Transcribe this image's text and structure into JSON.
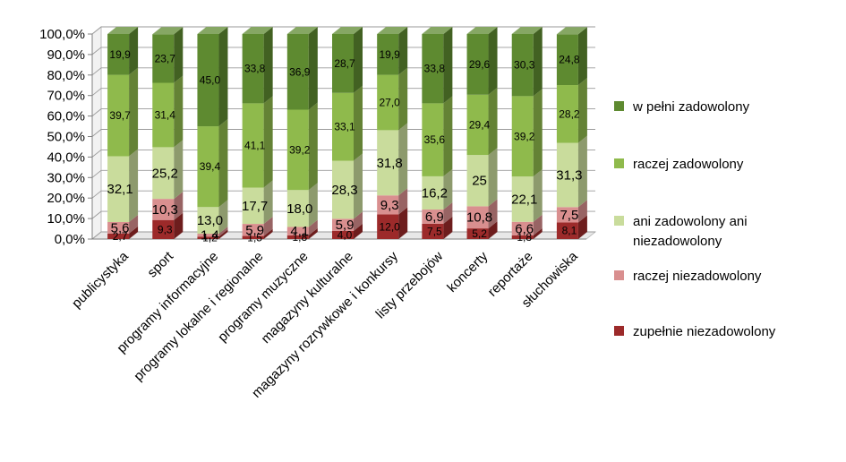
{
  "chart_data": {
    "type": "bar",
    "stacked": true,
    "percent": true,
    "style": "3d-stacked-column",
    "categories": [
      "publicystyka",
      "sport",
      "programy informacyjne",
      "programy lokalne i regionalne",
      "programy muzyczne",
      "magazyny kulturalne",
      "magazyny rozrywkowe i konkursy",
      "listy przebojów",
      "koncerty",
      "reportaże",
      "słuchowiska"
    ],
    "series": [
      {
        "name": "zupełnie niezadowolony",
        "color": "#9c2a2a",
        "values": [
          2.7,
          9.3,
          1.2,
          1.5,
          1.8,
          4.0,
          12.0,
          7.5,
          5.2,
          1.8,
          8.1
        ],
        "labels": [
          "2,7",
          "9,3",
          "1,2",
          "1,5",
          "1,8",
          "4,0",
          "12,0",
          "7,5",
          "5,2",
          "1,8",
          "8,1"
        ]
      },
      {
        "name": "raczej niezadowolony",
        "color": "#d98f8f",
        "values": [
          5.6,
          10.3,
          1.4,
          5.9,
          4.1,
          5.9,
          9.3,
          6.9,
          10.8,
          6.6,
          7.5
        ],
        "labels": [
          "5,6",
          "10,3",
          "1,4",
          "5,9",
          "4,1",
          "5,9",
          "9,3",
          "6,9",
          "10,8",
          "6,6",
          "7,5"
        ]
      },
      {
        "name": "ani zadowolony ani niezadowolony",
        "color": "#c9dc9c",
        "values": [
          32.1,
          25.2,
          13.0,
          17.7,
          18.0,
          28.3,
          31.8,
          16.2,
          25,
          22.1,
          31.3
        ],
        "labels": [
          "32,1",
          "25,2",
          "13,0",
          "17,7",
          "18,0",
          "28,3",
          "31,8",
          "16,2",
          "25",
          "22,1",
          "31,3"
        ]
      },
      {
        "name": "raczej zadowolony",
        "color": "#8fba4c",
        "values": [
          39.7,
          31.4,
          39.4,
          41.1,
          39.2,
          33.1,
          27.0,
          35.6,
          29.4,
          39.2,
          28.2
        ],
        "labels": [
          "39,7",
          "31,4",
          "39,4",
          "41,1",
          "39,2",
          "33,1",
          "27,0",
          "35,6",
          "29,4",
          "39,2",
          "28,2"
        ]
      },
      {
        "name": "w pełni zadowolony",
        "color": "#5e8a30",
        "values": [
          19.9,
          23.7,
          45.0,
          33.8,
          36.9,
          28.7,
          19.9,
          33.8,
          29.6,
          30.3,
          24.8
        ],
        "labels": [
          "19,9",
          "23,7",
          "45,0",
          "33,8",
          "36,9",
          "28,7",
          "19,9",
          "33,8",
          "29,6",
          "30,3",
          "24,8"
        ]
      }
    ],
    "yticks": [
      "0,0%",
      "10,0%",
      "20,0%",
      "30,0%",
      "40,0%",
      "50,0%",
      "60,0%",
      "70,0%",
      "80,0%",
      "90,0%",
      "100,0%"
    ],
    "ylim": [
      0,
      100
    ],
    "grid": true,
    "legend": {
      "position": "right",
      "order": [
        "w pełni zadowolony",
        "raczej zadowolony",
        "ani zadowolony ani niezadowolony",
        "raczej niezadowolony",
        "zupełnie niezadowolony"
      ],
      "lines": [
        [
          "w pełni zadowolony"
        ],
        [
          "raczej zadowolony"
        ],
        [
          "ani zadowolony ani",
          "niezadowolony"
        ],
        [
          "raczej niezadowolony"
        ],
        [
          "zupełnie niezadowolony"
        ]
      ]
    },
    "title": "",
    "xlabel": "",
    "ylabel": ""
  }
}
